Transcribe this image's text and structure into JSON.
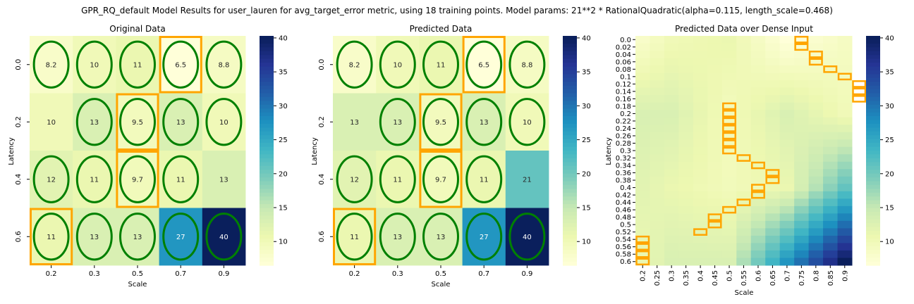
{
  "suptitle": "GPR_RQ_default Model Results for user_lauren for avg_target_error metric, using 18 training points. Model params: 21**2 * RationalQuadratic(alpha=0.115, length_scale=0.468)",
  "colors": {
    "cmap": [
      "#ffffd9",
      "#edf8b1",
      "#c7e9b4",
      "#7fcdbb",
      "#41b6c4",
      "#1d91c0",
      "#225ea8",
      "#253494",
      "#081d58"
    ],
    "training_ellipse": "#008000",
    "highlight_box": "#ffa500"
  },
  "chart_data": [
    {
      "type": "heatmap",
      "title": "Original Data",
      "xlabel": "Scale",
      "ylabel": "Latency",
      "x": [
        "0.2",
        "0.3",
        "0.5",
        "0.7",
        "0.9"
      ],
      "y": [
        "0.0",
        "0.2",
        "0.4",
        "0.6"
      ],
      "values": [
        [
          8.2,
          10,
          11,
          6.5,
          8.8
        ],
        [
          10,
          13,
          9.5,
          13,
          10
        ],
        [
          12,
          11,
          9.7,
          11,
          13
        ],
        [
          11,
          13,
          13,
          27,
          40
        ]
      ],
      "labels": [
        [
          "8.2",
          "10",
          "11",
          "6.5",
          "8.8"
        ],
        [
          "10",
          "13",
          "9.5",
          "13",
          "10"
        ],
        [
          "12",
          "11",
          "9.7",
          "11",
          "13"
        ],
        [
          "11",
          "13",
          "13",
          "27",
          "40"
        ]
      ],
      "training_points": [
        [
          0,
          0
        ],
        [
          0,
          1
        ],
        [
          0,
          2
        ],
        [
          0,
          3
        ],
        [
          0,
          4
        ],
        [
          1,
          1
        ],
        [
          1,
          2
        ],
        [
          1,
          3
        ],
        [
          1,
          4
        ],
        [
          2,
          0
        ],
        [
          2,
          1
        ],
        [
          2,
          2
        ],
        [
          2,
          3
        ],
        [
          3,
          0
        ],
        [
          3,
          1
        ],
        [
          3,
          2
        ],
        [
          3,
          3
        ],
        [
          3,
          4
        ]
      ],
      "highlighted_cells": [
        [
          0,
          3
        ],
        [
          1,
          2
        ],
        [
          2,
          2
        ],
        [
          3,
          0
        ]
      ],
      "colorbar": {
        "ticks": [
          10,
          15,
          20,
          25,
          30,
          35,
          40
        ],
        "range": [
          6.5,
          40.3
        ]
      }
    },
    {
      "type": "heatmap",
      "title": "Predicted Data",
      "xlabel": "Scale",
      "ylabel": "Latency",
      "x": [
        "0.2",
        "0.3",
        "0.5",
        "0.7",
        "0.9"
      ],
      "y": [
        "0.0",
        "0.2",
        "0.4",
        "0.6"
      ],
      "values": [
        [
          8.2,
          10,
          11,
          6.5,
          8.8
        ],
        [
          13,
          13,
          9.5,
          13,
          10
        ],
        [
          12,
          11,
          9.7,
          11,
          21
        ],
        [
          11,
          13,
          13,
          27,
          40
        ]
      ],
      "labels": [
        [
          "8.2",
          "10",
          "11",
          "6.5",
          "8.8"
        ],
        [
          "13",
          "13",
          "9.5",
          "13",
          "10"
        ],
        [
          "12",
          "11",
          "9.7",
          "11",
          "21"
        ],
        [
          "11",
          "13",
          "13",
          "27",
          "40"
        ]
      ],
      "training_points": [
        [
          0,
          0
        ],
        [
          0,
          1
        ],
        [
          0,
          2
        ],
        [
          0,
          3
        ],
        [
          0,
          4
        ],
        [
          1,
          1
        ],
        [
          1,
          2
        ],
        [
          1,
          3
        ],
        [
          1,
          4
        ],
        [
          2,
          0
        ],
        [
          2,
          1
        ],
        [
          2,
          2
        ],
        [
          2,
          3
        ],
        [
          3,
          0
        ],
        [
          3,
          1
        ],
        [
          3,
          2
        ],
        [
          3,
          3
        ],
        [
          3,
          4
        ]
      ],
      "highlighted_cells": [
        [
          0,
          3
        ],
        [
          1,
          2
        ],
        [
          2,
          2
        ],
        [
          3,
          0
        ]
      ],
      "colorbar": {
        "ticks": [
          10,
          15,
          20,
          25,
          30,
          35,
          40
        ],
        "range": [
          6.5,
          40.3
        ]
      }
    },
    {
      "type": "heatmap",
      "title": "Predicted Data over Dense Input",
      "xlabel": "Scale",
      "ylabel": "Latency",
      "x": [
        "0.2",
        "0.25",
        "0.3",
        "0.35",
        "0.4",
        "0.45",
        "0.5",
        "0.55",
        "0.6",
        "0.65",
        "0.7",
        "0.75",
        "0.8",
        "0.85",
        "0.9"
      ],
      "y": [
        "0.0",
        "0.02",
        "0.04",
        "0.06",
        "0.08",
        "0.1",
        "0.12",
        "0.14",
        "0.16",
        "0.18",
        "0.2",
        "0.22",
        "0.24",
        "0.26",
        "0.28",
        "0.3",
        "0.32",
        "0.34",
        "0.36",
        "0.38",
        "0.4",
        "0.42",
        "0.44",
        "0.46",
        "0.48",
        "0.5",
        "0.52",
        "0.54",
        "0.56",
        "0.58",
        "0.6"
      ],
      "anchor_grid": {
        "x": [
          0.2,
          0.3,
          0.5,
          0.7,
          0.9
        ],
        "y": [
          0.0,
          0.2,
          0.4,
          0.6
        ],
        "values": [
          [
            8.2,
            10,
            11,
            6.5,
            8.8
          ],
          [
            13,
            13,
            9.5,
            13,
            10
          ],
          [
            12,
            11,
            9.7,
            11,
            21
          ],
          [
            11,
            13,
            13,
            27,
            40
          ]
        ]
      },
      "min_path": [
        [
          0,
          11
        ],
        [
          1,
          11
        ],
        [
          2,
          12
        ],
        [
          3,
          12
        ],
        [
          4,
          13
        ],
        [
          5,
          14
        ],
        [
          6,
          15
        ],
        [
          7,
          15
        ],
        [
          8,
          15
        ],
        [
          9,
          6
        ],
        [
          10,
          6
        ],
        [
          11,
          6
        ],
        [
          12,
          6
        ],
        [
          13,
          6
        ],
        [
          14,
          6
        ],
        [
          15,
          6
        ],
        [
          16,
          7
        ],
        [
          17,
          8
        ],
        [
          18,
          9
        ],
        [
          19,
          9
        ],
        [
          20,
          8
        ],
        [
          21,
          8
        ],
        [
          22,
          7
        ],
        [
          23,
          6
        ],
        [
          24,
          5
        ],
        [
          25,
          5
        ],
        [
          26,
          4
        ],
        [
          27,
          0
        ],
        [
          28,
          0
        ],
        [
          29,
          0
        ],
        [
          30,
          0
        ]
      ],
      "colorbar": {
        "ticks": [
          10,
          15,
          20,
          25,
          30,
          35,
          40
        ],
        "range": [
          6.5,
          40.3
        ]
      }
    }
  ]
}
